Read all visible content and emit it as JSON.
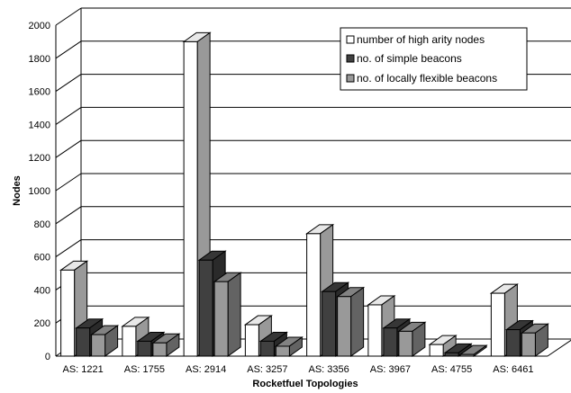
{
  "chart_data": {
    "type": "bar",
    "title": "",
    "xlabel": "Rocketfuel Topologies",
    "ylabel": "Nodes",
    "ylim": [
      0,
      2000
    ],
    "yticks": [
      0,
      200,
      400,
      600,
      800,
      1000,
      1200,
      1400,
      1600,
      1800,
      2000
    ],
    "grid": true,
    "legend_position": "top-right",
    "style": "3d-clustered",
    "categories": [
      "AS: 1221",
      "AS: 1755",
      "AS: 2914",
      "AS: 3257",
      "AS: 3356",
      "AS: 3967",
      "AS: 4755",
      "AS: 6461"
    ],
    "series": [
      {
        "name": "number of high arity nodes",
        "color": "#ffffff",
        "values": [
          520,
          180,
          1900,
          190,
          740,
          310,
          70,
          380
        ]
      },
      {
        "name": "no. of simple beacons",
        "color": "#404040",
        "values": [
          170,
          90,
          580,
          90,
          390,
          170,
          20,
          160
        ]
      },
      {
        "name": "no. of locally flexible beacons",
        "color": "#999999",
        "values": [
          130,
          80,
          450,
          60,
          360,
          150,
          10,
          140
        ]
      }
    ]
  }
}
